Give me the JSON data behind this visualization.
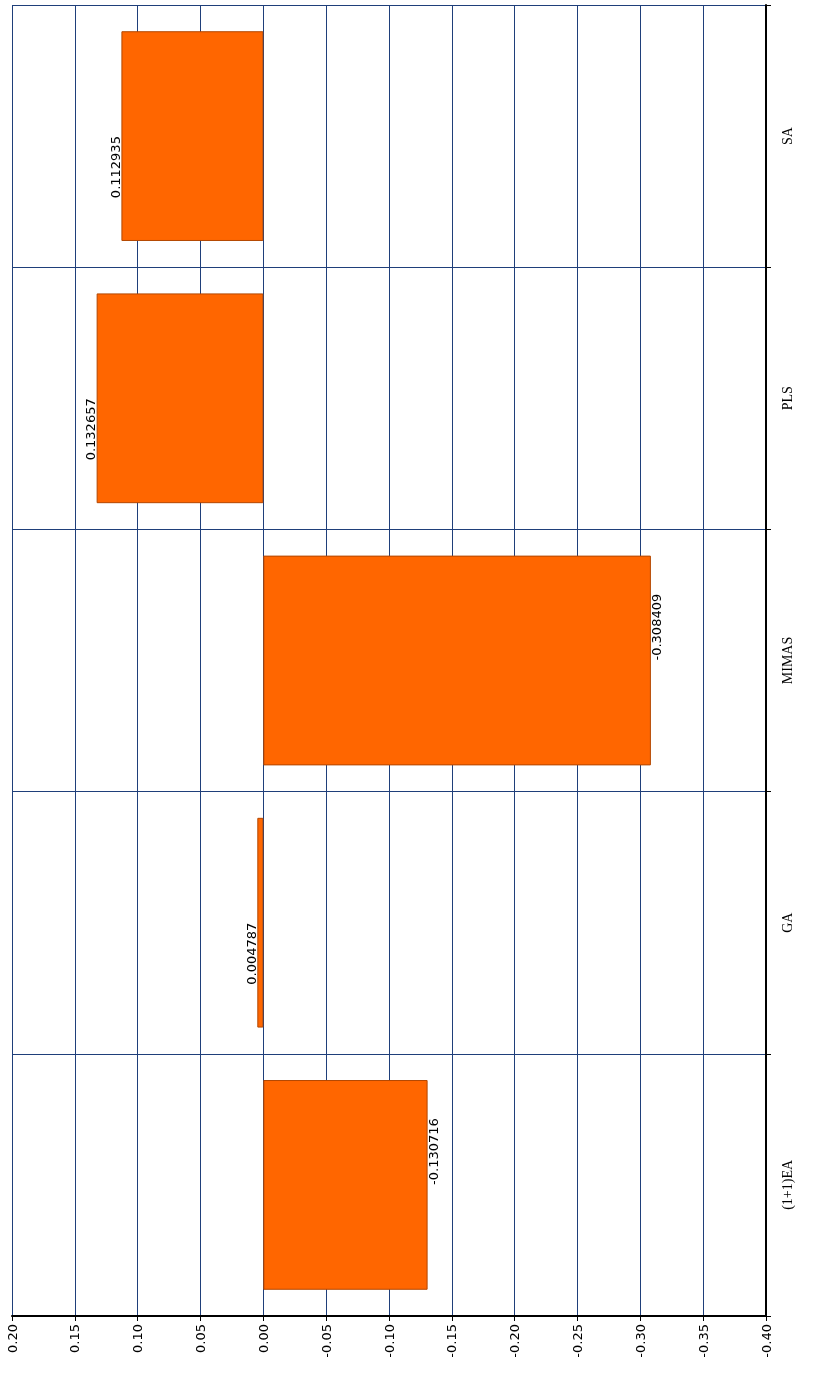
{
  "chart_data": {
    "type": "bar",
    "orientation": "horizontal",
    "categories": [
      "SA",
      "PLS",
      "MIMAS",
      "GA",
      "(1+1)EA"
    ],
    "values": [
      0.112935,
      0.132657,
      -0.308409,
      0.004787,
      -0.130716
    ],
    "color": "#ff6600",
    "xlim": [
      0.2,
      -0.4
    ],
    "xticks": [
      {
        "value": 0.2,
        "label": "0.20"
      },
      {
        "value": 0.15,
        "label": "0.15"
      },
      {
        "value": 0.1,
        "label": "0.10"
      },
      {
        "value": 0.05,
        "label": "0.05"
      },
      {
        "value": 0,
        "label": "0.00"
      },
      {
        "value": -0.05,
        "label": "-0.05"
      },
      {
        "value": -0.1,
        "label": "-0.10"
      },
      {
        "value": -0.15,
        "label": "-0.15"
      },
      {
        "value": -0.2,
        "label": "-0.20"
      },
      {
        "value": -0.25,
        "label": "-0.25"
      },
      {
        "value": -0.3,
        "label": "-0.30"
      },
      {
        "value": -0.35,
        "label": "-0.35"
      },
      {
        "value": -0.4,
        "label": "-0.40"
      }
    ],
    "grid": true,
    "data_labels": true
  }
}
